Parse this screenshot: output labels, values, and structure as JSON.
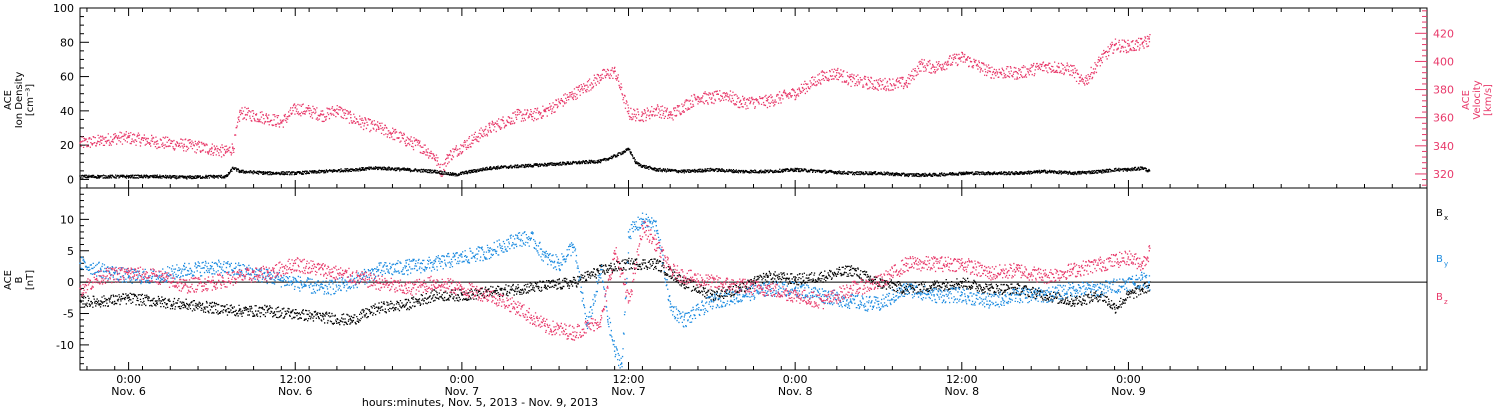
{
  "colors": {
    "black": "#000000",
    "pink": "#e8396a",
    "blue": "#1a8ae0"
  },
  "chart_data": {
    "type": "scatter",
    "x_unit": "hours since Nov. 5, 2013 00:00",
    "x_range": [
      20.5,
      117.5
    ],
    "x_ticks": [
      {
        "x": 24,
        "time": "0:00",
        "date": "Nov. 6"
      },
      {
        "x": 36,
        "time": "12:00",
        "date": "Nov. 6"
      },
      {
        "x": 48,
        "time": "0:00",
        "date": "Nov. 7"
      },
      {
        "x": 60,
        "time": "12:00",
        "date": "Nov. 7"
      },
      {
        "x": 72,
        "time": "0:00",
        "date": "Nov. 8"
      },
      {
        "x": 84,
        "time": "12:00",
        "date": "Nov. 8"
      },
      {
        "x": 96,
        "time": "0:00",
        "date": "Nov. 9"
      }
    ],
    "xlabel": "hours:minutes, Nov. 5, 2013 - Nov. 9, 2013",
    "panels": [
      {
        "name": "top",
        "left_label": [
          "ACE",
          "Ion Density",
          "[cm⁻³]"
        ],
        "right_label": [
          "ACE",
          "Velocity",
          "[km/s]"
        ],
        "ylim_left": [
          -5,
          100
        ],
        "yticks_left": [
          0,
          20,
          40,
          60,
          80,
          100
        ],
        "ylim_right": [
          310,
          438
        ],
        "yticks_right": [
          320,
          340,
          360,
          380,
          400,
          420
        ],
        "series": [
          {
            "key": "density",
            "axis": "left",
            "color": "black",
            "x": [
              20.5,
              22,
              24,
              26,
              28,
              30,
              31,
              31.5,
              32,
              34,
              36,
              38,
              40,
              42,
              44,
              46,
              47.5,
              48,
              50,
              52,
              54,
              56,
              58,
              59,
              60,
              60.5,
              61,
              62,
              64,
              66,
              68,
              70,
              72,
              74,
              76,
              78,
              80,
              82,
              84,
              86,
              88,
              90,
              92,
              94,
              95,
              96,
              97,
              97.5
            ],
            "y": [
              2,
              2,
              2,
              2,
              1.5,
              2,
              2,
              7,
              5,
              4,
              4,
              5,
              6,
              7,
              6,
              5,
              3,
              4,
              7,
              8,
              9,
              10,
              11,
              14,
              18,
              10,
              8,
              6,
              5,
              6,
              5,
              5,
              6,
              5,
              4,
              4,
              3,
              3,
              4,
              4,
              4,
              5,
              4,
              5,
              6,
              6,
              7,
              5
            ]
          },
          {
            "key": "velocity",
            "axis": "right",
            "color": "pink",
            "x": [
              20.5,
              22,
              23,
              24,
              26,
              28,
              30,
              31,
              31.5,
              32,
              34,
              35,
              36,
              37,
              38,
              39,
              40,
              41,
              42,
              43,
              44,
              45,
              46,
              46.5,
              47,
              48,
              50,
              52,
              53,
              54,
              56,
              57,
              58,
              59,
              60,
              61,
              62,
              63,
              64,
              65,
              66,
              67,
              68,
              70,
              72,
              74,
              75,
              76,
              78,
              80,
              81,
              82,
              83,
              84,
              86,
              88,
              90,
              91,
              92,
              92.5,
              93,
              94,
              95,
              96,
              97,
              97.5
            ],
            "y": [
              342,
              344,
              346,
              346,
              343,
              341,
              338,
              336,
              339,
              364,
              360,
              357,
              367,
              365,
              362,
              366,
              360,
              356,
              353,
              349,
              344,
              340,
              333,
              322,
              333,
              340,
              353,
              362,
              362,
              365,
              377,
              383,
              390,
              393,
              363,
              362,
              366,
              362,
              369,
              375,
              374,
              377,
              371,
              372,
              378,
              390,
              392,
              387,
              384,
              385,
              398,
              396,
              400,
              403,
              393,
              392,
              397,
              396,
              394,
              386,
              388,
              402,
              412,
              411,
              413,
              416
            ]
          }
        ]
      },
      {
        "name": "bottom",
        "left_label": [
          "ACE",
          "B",
          "[nT]"
        ],
        "ylim": [
          -14,
          15
        ],
        "yticks": [
          -10,
          -5,
          0,
          5,
          10
        ],
        "zero_line": true,
        "legend": [
          {
            "text": "B",
            "sub": "x",
            "color": "black"
          },
          {
            "text": "B",
            "sub": "y",
            "color": "blue"
          },
          {
            "text": "B",
            "sub": "z",
            "color": "pink"
          }
        ],
        "series": [
          {
            "key": "bx",
            "color": "black",
            "x": [
              20.5,
              22,
              24,
              26,
              28,
              30,
              32,
              34,
              36,
              38,
              40,
              42,
              44,
              46,
              48,
              50,
              52,
              54,
              56,
              58,
              60,
              62,
              64,
              66,
              68,
              70,
              72,
              74,
              76,
              78,
              80,
              82,
              84,
              86,
              88,
              90,
              92,
              94,
              95,
              96,
              97,
              97.5
            ],
            "y": [
              -3,
              -3,
              -2.5,
              -3,
              -3.5,
              -4,
              -4.5,
              -4.5,
              -5,
              -5.5,
              -6,
              -4,
              -3.5,
              -2,
              -2,
              -1.5,
              -1,
              -0.5,
              0,
              2,
              3,
              3,
              0,
              -2,
              -1,
              1,
              0.5,
              1,
              2,
              0,
              -1,
              -0.5,
              0,
              -1,
              -1,
              -2,
              -3,
              -2,
              -4,
              -2,
              -1,
              -0.5
            ]
          },
          {
            "key": "by",
            "color": "blue",
            "x": [
              20.5,
              22,
              24,
              26,
              28,
              30,
              32,
              34,
              36,
              38,
              40,
              42,
              44,
              46,
              48,
              50,
              52,
              53,
              54,
              55,
              56,
              57,
              58,
              58.5,
              59,
              59.5,
              60,
              61,
              62,
              63,
              64,
              66,
              68,
              70,
              72,
              74,
              76,
              78,
              80,
              82,
              84,
              86,
              88,
              90,
              92,
              94,
              96,
              97,
              97.5
            ],
            "y": [
              3,
              2,
              1,
              1,
              2,
              2.5,
              2,
              1,
              0,
              -1,
              0,
              2,
              2.5,
              3,
              4,
              5,
              7,
              7,
              4,
              3,
              6,
              -7,
              2,
              -6,
              -11,
              -13,
              8,
              10,
              9,
              -4,
              -6,
              -3,
              -2,
              -1,
              -1,
              -2,
              -3,
              -3.5,
              -1,
              -2,
              -2,
              -3,
              -2,
              -2,
              -1,
              -1,
              0,
              0.5,
              0
            ]
          },
          {
            "key": "bz",
            "color": "pink",
            "x": [
              20.5,
              22,
              24,
              26,
              28,
              30,
              32,
              34,
              36,
              38,
              40,
              42,
              44,
              46,
              48,
              50,
              52,
              54,
              56,
              58,
              59,
              60,
              61,
              62,
              63,
              64,
              66,
              68,
              70,
              72,
              74,
              76,
              78,
              80,
              82,
              84,
              86,
              88,
              90,
              92,
              94,
              96,
              97,
              97.5
            ],
            "y": [
              -1,
              1,
              1.5,
              1,
              -0.5,
              0,
              1,
              1.5,
              3,
              2,
              1,
              0,
              -1,
              0,
              -1,
              -2,
              -4,
              -7,
              -8,
              -6,
              5,
              -3,
              9,
              6,
              2,
              1,
              0,
              -0.5,
              -1,
              -2,
              -3,
              -1,
              0,
              3,
              3,
              3,
              1.5,
              2,
              1,
              2,
              3,
              4,
              3,
              5
            ]
          }
        ]
      }
    ]
  }
}
